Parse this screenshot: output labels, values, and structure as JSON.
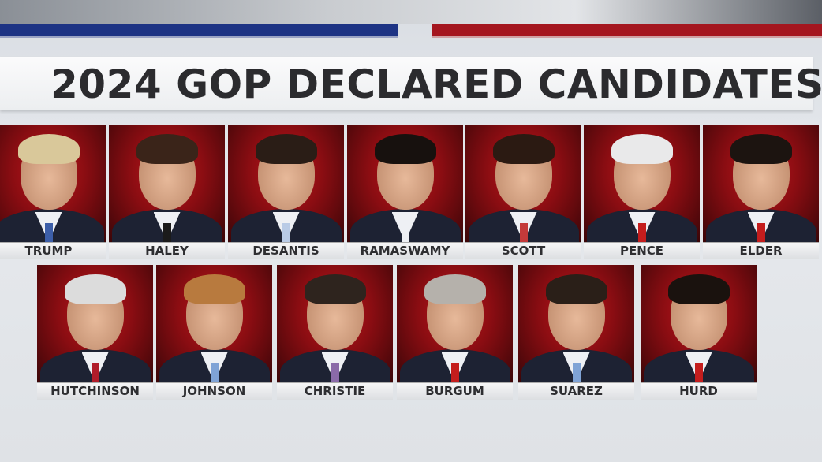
{
  "title": "2024 GOP DECLARED CANDIDATES",
  "colors": {
    "blue_bar": "#1d3384",
    "red_bar": "#a4161f",
    "photo_bg": "#b0131a",
    "title_text": "#2b2b2e"
  },
  "row1": [
    {
      "name": "TRUMP",
      "hair": "#d9c89a",
      "tie": "#3c5ea8"
    },
    {
      "name": "HALEY",
      "hair": "#3a2419",
      "tie": "#1b1b1b"
    },
    {
      "name": "DESANTIS",
      "hair": "#2a1d16",
      "tie": "#b9cbe6"
    },
    {
      "name": "RAMASWAMY",
      "hair": "#17110e",
      "tie": "#eef0f4"
    },
    {
      "name": "SCOTT",
      "hair": "#2b1a12",
      "tie": "#c43a3a"
    },
    {
      "name": "PENCE",
      "hair": "#e9e9ea",
      "tie": "#c41d1d"
    },
    {
      "name": "ELDER",
      "hair": "#1c1410",
      "tie": "#c41d1d"
    }
  ],
  "row2": [
    {
      "name": "HUTCHINSON",
      "hair": "#dcdcdc",
      "tie": "#b01c2a"
    },
    {
      "name": "JOHNSON",
      "hair": "#b87a3e",
      "tie": "#7fa3d6"
    },
    {
      "name": "CHRISTIE",
      "hair": "#2e241e",
      "tie": "#8a6aa8"
    },
    {
      "name": "BURGUM",
      "hair": "#b5b1ab",
      "tie": "#c41d1d"
    },
    {
      "name": "SUAREZ",
      "hair": "#2a1f18",
      "tie": "#7fa3d6"
    },
    {
      "name": "HURD",
      "hair": "#1a120e",
      "tie": "#c41d1d"
    }
  ]
}
